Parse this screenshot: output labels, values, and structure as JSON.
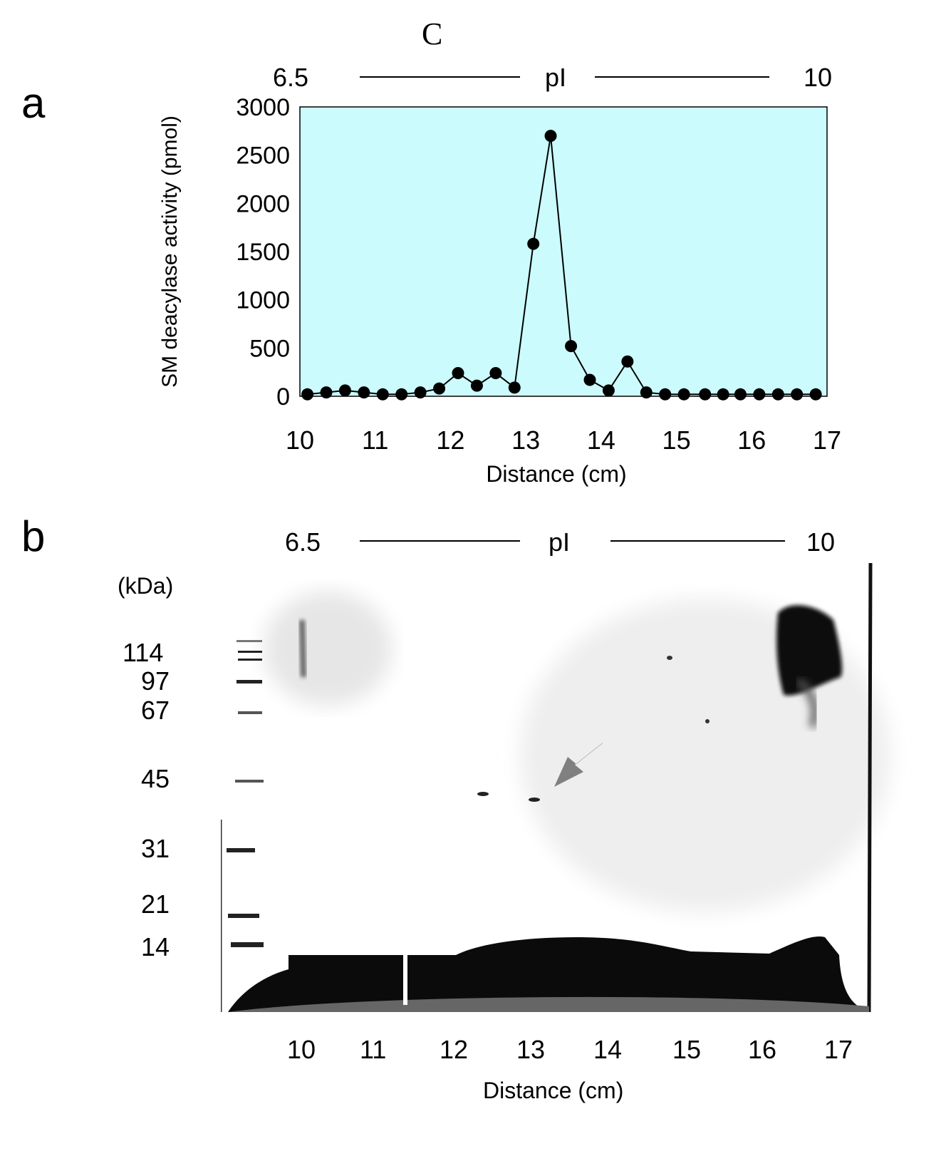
{
  "figure": {
    "top_label": "C",
    "panel_a_label": "a",
    "panel_b_label": "b"
  },
  "panel_a": {
    "pi_header": {
      "left": "6.5",
      "center": "pI",
      "right": "10"
    }
  },
  "panel_b": {
    "pi_header": {
      "left": "6.5",
      "center": "pI",
      "right": "10"
    },
    "kda_label": "(kDa)",
    "markers": [
      "114",
      "97",
      "67",
      "45",
      "31",
      "21",
      "14"
    ],
    "x_ticks": [
      "10",
      "11",
      "12",
      "13",
      "14",
      "15",
      "16",
      "17"
    ],
    "xlabel": "Distance (cm)"
  },
  "chart_data": {
    "type": "line",
    "title": "",
    "xlabel": "Distance (cm)",
    "ylabel": "SM deacylase activity (pmol)",
    "xlim": [
      10,
      17
    ],
    "ylim": [
      0,
      3000
    ],
    "x_ticks": [
      10,
      11,
      12,
      13,
      14,
      15,
      16,
      17
    ],
    "y_ticks": [
      0,
      500,
      1000,
      1500,
      2000,
      2500,
      3000
    ],
    "grid": false,
    "background_color": "#ccfbfd",
    "series": [
      {
        "x": [
          10.1,
          10.35,
          10.6,
          10.85,
          11.1,
          11.35,
          11.6,
          11.85,
          12.1,
          12.35,
          12.6,
          12.85,
          13.1,
          13.33,
          13.6,
          13.85,
          14.1,
          14.35,
          14.6,
          14.85,
          15.1,
          15.38,
          15.62,
          15.85,
          16.1,
          16.35,
          16.6,
          16.85
        ],
        "y": [
          20,
          40,
          60,
          40,
          20,
          20,
          40,
          80,
          240,
          110,
          240,
          90,
          1580,
          2700,
          520,
          170,
          60,
          360,
          40,
          20,
          20,
          20,
          20,
          20,
          20,
          20,
          20,
          20
        ]
      }
    ]
  }
}
